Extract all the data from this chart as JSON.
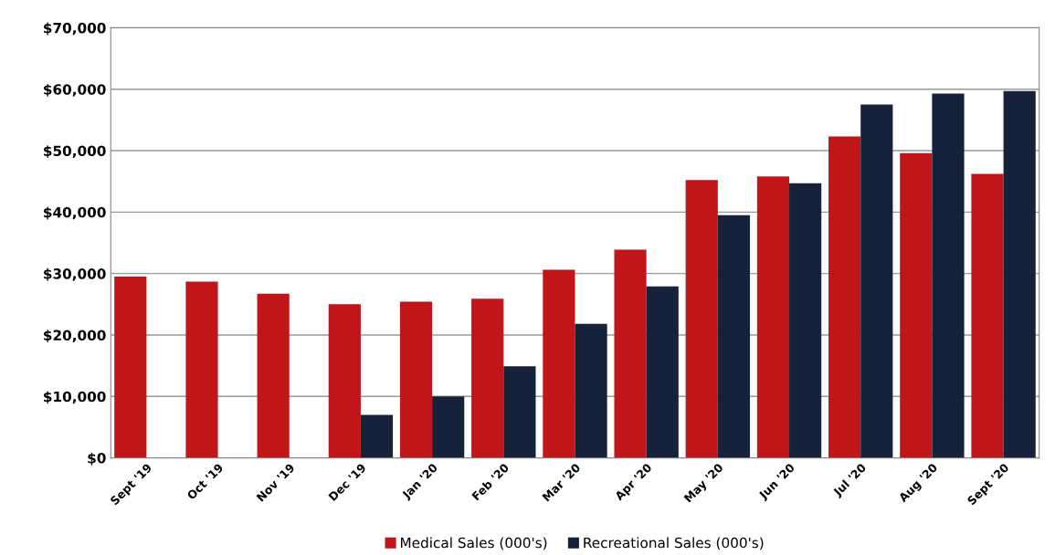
{
  "chart_data": {
    "type": "bar",
    "categories": [
      "Sept '19",
      "Oct '19",
      "Nov '19",
      "Dec '19",
      "Jan '20",
      "Feb '20",
      "Mar '20",
      "Apr '20",
      "May '20",
      "Jun '20",
      "Jul '20",
      "Aug '20",
      "Sept '20"
    ],
    "series": [
      {
        "name": "Medical Sales (000's)",
        "color": "#c0161a",
        "values": [
          29500,
          28700,
          26700,
          25000,
          25400,
          25900,
          30600,
          33900,
          45200,
          45800,
          52300,
          49600,
          46200
        ]
      },
      {
        "name": "Recreational Sales (000's)",
        "color": "#16213a",
        "values": [
          null,
          null,
          null,
          7000,
          10000,
          14900,
          21800,
          27900,
          39500,
          44700,
          57500,
          59300,
          59700
        ]
      }
    ],
    "ylim": [
      0,
      70000
    ],
    "yticks": [
      {
        "value": 0,
        "label": "$0"
      },
      {
        "value": 10000,
        "label": "$10,000"
      },
      {
        "value": 20000,
        "label": "$20,000"
      },
      {
        "value": 30000,
        "label": "$30,000"
      },
      {
        "value": 40000,
        "label": "$40,000"
      },
      {
        "value": 50000,
        "label": "$50,000"
      },
      {
        "value": 60000,
        "label": "$60,000"
      },
      {
        "value": 70000,
        "label": "$70,000"
      }
    ],
    "grid": "y",
    "legend": "bottom"
  }
}
